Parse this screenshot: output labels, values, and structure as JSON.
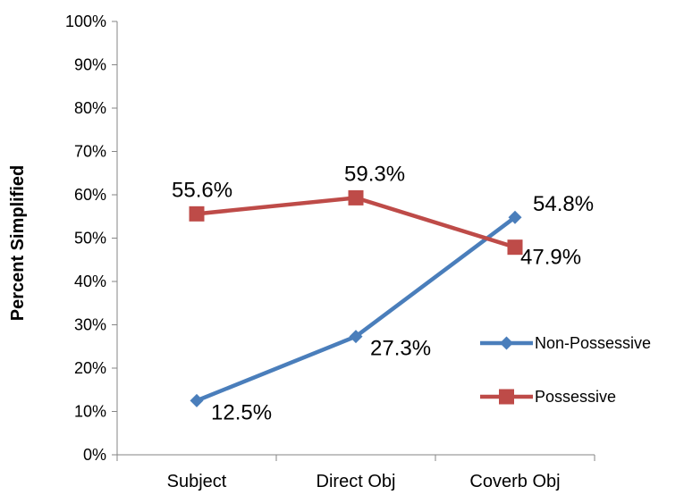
{
  "chart_data": {
    "type": "line",
    "title": "",
    "xlabel": "",
    "ylabel": "Percent Simplified",
    "ylim": [
      0,
      100
    ],
    "y_ticks": [
      "0%",
      "10%",
      "20%",
      "30%",
      "40%",
      "50%",
      "60%",
      "70%",
      "80%",
      "90%",
      "100%"
    ],
    "categories": [
      "Subject",
      "Direct Obj",
      "Coverb Obj"
    ],
    "grid": false,
    "legend_position": "right",
    "series": [
      {
        "name": "Non-Possessive",
        "marker": "diamond",
        "color": "#4a7ebb",
        "values": [
          12.5,
          27.3,
          54.8
        ],
        "labels": [
          "12.5%",
          "27.3%",
          "54.8%"
        ]
      },
      {
        "name": "Possessive",
        "marker": "square",
        "color": "#be4b48",
        "values": [
          55.6,
          59.3,
          47.9
        ],
        "labels": [
          "55.6%",
          "59.3%",
          "47.9%"
        ]
      }
    ]
  }
}
